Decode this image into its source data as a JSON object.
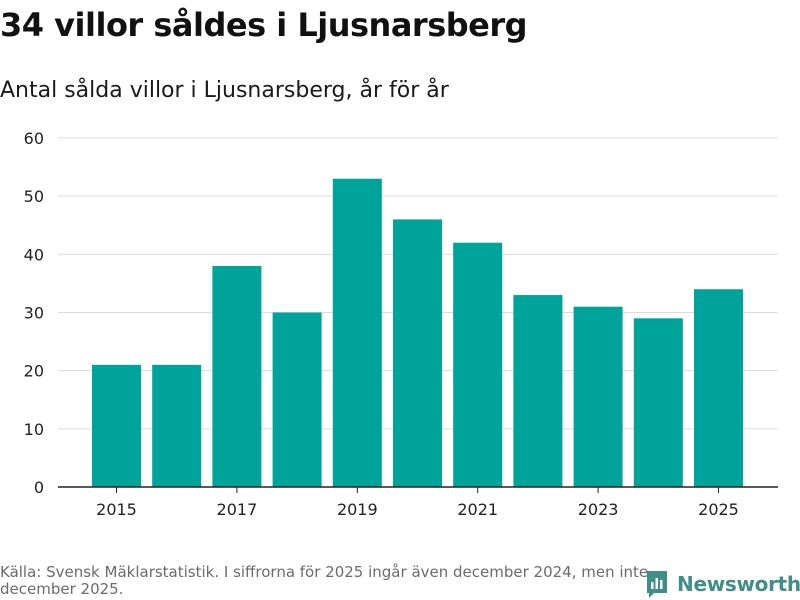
{
  "title": "34 villor såldes i Ljusnarsberg",
  "subtitle": "Antal sålda villor i Ljusnarsberg, år för år",
  "source": "Källa: Svensk Mäklarstatistik. I siffrorna för 2025 ingår även december 2024, men inte december 2025.",
  "brand": {
    "name": "Newsworthy",
    "logo_icon": "bar-chart-icon"
  },
  "colors": {
    "bar": "#00a39a",
    "grid": "#dcdcdc",
    "axis": "#222222",
    "brand": "#3f8f88"
  },
  "chart_data": {
    "type": "bar",
    "title": "34 villor såldes i Ljusnarsberg",
    "xlabel": "",
    "ylabel": "",
    "categories": [
      "2015",
      "2016",
      "2017",
      "2018",
      "2019",
      "2020",
      "2021",
      "2022",
      "2023",
      "2024",
      "2025"
    ],
    "values": [
      21,
      21,
      38,
      30,
      53,
      46,
      42,
      33,
      31,
      29,
      34
    ],
    "x_tick_labels": [
      "2015",
      "2017",
      "2019",
      "2021",
      "2023",
      "2025"
    ],
    "y_ticks": [
      0,
      10,
      20,
      30,
      40,
      50,
      60
    ],
    "ylim": [
      0,
      60
    ],
    "grid": true
  }
}
